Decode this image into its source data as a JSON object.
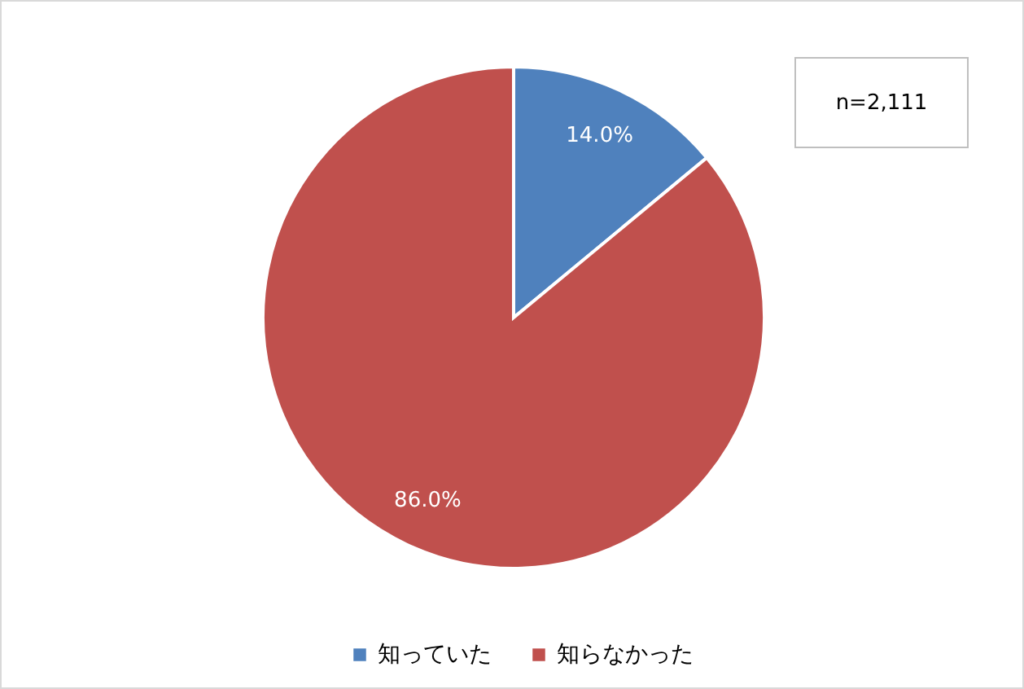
{
  "chart_data": {
    "type": "pie",
    "categories": [
      "知っていた",
      "知らなかった"
    ],
    "values": [
      14.0,
      86.0
    ],
    "colors": [
      "#4f81bd",
      "#c0504d"
    ],
    "value_labels": [
      "14.0%",
      "86.0%"
    ],
    "legend": "bottom",
    "annotations": [
      "n=2,111"
    ]
  }
}
